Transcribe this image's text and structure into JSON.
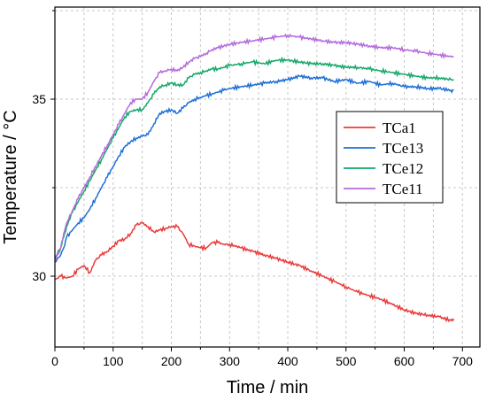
{
  "chart_data": {
    "type": "line",
    "xlabel": "Time / min",
    "ylabel": "Temperature / °C",
    "xlim": [
      0,
      730
    ],
    "ylim": [
      28,
      37.6
    ],
    "xticks": [
      0,
      100,
      200,
      300,
      400,
      500,
      600,
      700
    ],
    "yticks": [
      30,
      35
    ],
    "xtick_labels": [
      "0",
      "100",
      "200",
      "300",
      "400",
      "500",
      "600",
      "700"
    ],
    "ytick_labels": [
      "30",
      "35"
    ],
    "grid": true,
    "legend_position": "right",
    "series": [
      {
        "name": "TCa1",
        "color": "#ea3b3b",
        "x": [
          0,
          10,
          20,
          30,
          40,
          50,
          60,
          70,
          80,
          90,
          100,
          110,
          120,
          130,
          140,
          150,
          160,
          170,
          180,
          190,
          200,
          210,
          220,
          230,
          240,
          250,
          260,
          270,
          280,
          290,
          300,
          320,
          340,
          360,
          380,
          400,
          420,
          440,
          460,
          480,
          500,
          520,
          540,
          560,
          580,
          600,
          620,
          640,
          660,
          680,
          685
        ],
        "y": [
          29.9,
          30.0,
          29.95,
          30.0,
          30.2,
          30.3,
          30.1,
          30.45,
          30.6,
          30.7,
          30.85,
          31.0,
          31.05,
          31.2,
          31.45,
          31.5,
          31.4,
          31.25,
          31.3,
          31.35,
          31.4,
          31.4,
          31.2,
          30.9,
          30.85,
          30.8,
          30.8,
          30.95,
          30.95,
          30.9,
          30.9,
          30.8,
          30.7,
          30.6,
          30.5,
          30.4,
          30.3,
          30.15,
          30.0,
          29.85,
          29.7,
          29.55,
          29.45,
          29.35,
          29.2,
          29.05,
          28.95,
          28.9,
          28.85,
          28.75,
          28.8
        ]
      },
      {
        "name": "TCe13",
        "color": "#1e6fd6",
        "x": [
          0,
          10,
          15,
          20,
          30,
          40,
          50,
          60,
          70,
          80,
          90,
          100,
          110,
          120,
          130,
          140,
          150,
          160,
          170,
          180,
          190,
          200,
          210,
          220,
          230,
          240,
          250,
          260,
          270,
          280,
          290,
          300,
          320,
          340,
          360,
          380,
          400,
          420,
          440,
          460,
          480,
          500,
          520,
          540,
          560,
          580,
          600,
          620,
          640,
          660,
          680,
          685
        ],
        "y": [
          30.4,
          30.6,
          30.8,
          31.1,
          31.3,
          31.5,
          31.65,
          31.9,
          32.2,
          32.5,
          32.8,
          33.1,
          33.4,
          33.65,
          33.8,
          33.9,
          33.95,
          34.0,
          34.3,
          34.6,
          34.65,
          34.7,
          34.6,
          34.75,
          34.9,
          35.0,
          35.05,
          35.1,
          35.15,
          35.2,
          35.25,
          35.3,
          35.35,
          35.4,
          35.45,
          35.5,
          35.55,
          35.65,
          35.6,
          35.6,
          35.5,
          35.55,
          35.45,
          35.5,
          35.4,
          35.45,
          35.35,
          35.35,
          35.3,
          35.3,
          35.25,
          35.25
        ]
      },
      {
        "name": "TCe12",
        "color": "#16a86a",
        "x": [
          0,
          10,
          15,
          20,
          30,
          40,
          50,
          60,
          70,
          80,
          90,
          100,
          110,
          120,
          130,
          140,
          150,
          160,
          170,
          180,
          190,
          200,
          210,
          220,
          230,
          240,
          250,
          260,
          270,
          280,
          290,
          300,
          320,
          340,
          360,
          380,
          400,
          420,
          440,
          460,
          480,
          500,
          520,
          540,
          560,
          580,
          600,
          620,
          640,
          660,
          680,
          685
        ],
        "y": [
          30.5,
          30.8,
          31.1,
          31.4,
          31.8,
          32.1,
          32.4,
          32.7,
          33.0,
          33.3,
          33.6,
          33.9,
          34.2,
          34.5,
          34.65,
          34.7,
          34.7,
          34.9,
          35.15,
          35.35,
          35.4,
          35.45,
          35.4,
          35.4,
          35.6,
          35.7,
          35.75,
          35.8,
          35.85,
          35.85,
          35.9,
          35.95,
          36.0,
          36.05,
          36.0,
          36.1,
          36.1,
          36.05,
          36.0,
          36.0,
          35.95,
          35.9,
          35.9,
          35.85,
          35.8,
          35.75,
          35.7,
          35.65,
          35.6,
          35.6,
          35.55,
          35.55
        ]
      },
      {
        "name": "TCe11",
        "color": "#b46bdc",
        "x": [
          0,
          10,
          15,
          20,
          30,
          40,
          50,
          60,
          70,
          80,
          90,
          100,
          110,
          120,
          130,
          140,
          150,
          160,
          170,
          180,
          190,
          200,
          210,
          220,
          230,
          240,
          250,
          260,
          270,
          280,
          290,
          300,
          320,
          340,
          360,
          380,
          400,
          420,
          440,
          460,
          480,
          500,
          520,
          540,
          560,
          580,
          600,
          620,
          640,
          660,
          680,
          685
        ],
        "y": [
          30.45,
          30.8,
          31.2,
          31.5,
          31.85,
          32.2,
          32.5,
          32.8,
          33.1,
          33.4,
          33.7,
          34.0,
          34.3,
          34.6,
          34.9,
          35.0,
          35.0,
          35.2,
          35.5,
          35.75,
          35.8,
          35.85,
          35.8,
          35.9,
          36.05,
          36.15,
          36.2,
          36.3,
          36.4,
          36.45,
          36.5,
          36.55,
          36.6,
          36.65,
          36.7,
          36.75,
          36.8,
          36.75,
          36.7,
          36.65,
          36.6,
          36.6,
          36.55,
          36.5,
          36.45,
          36.45,
          36.4,
          36.35,
          36.3,
          36.25,
          36.2,
          36.2
        ]
      }
    ]
  }
}
